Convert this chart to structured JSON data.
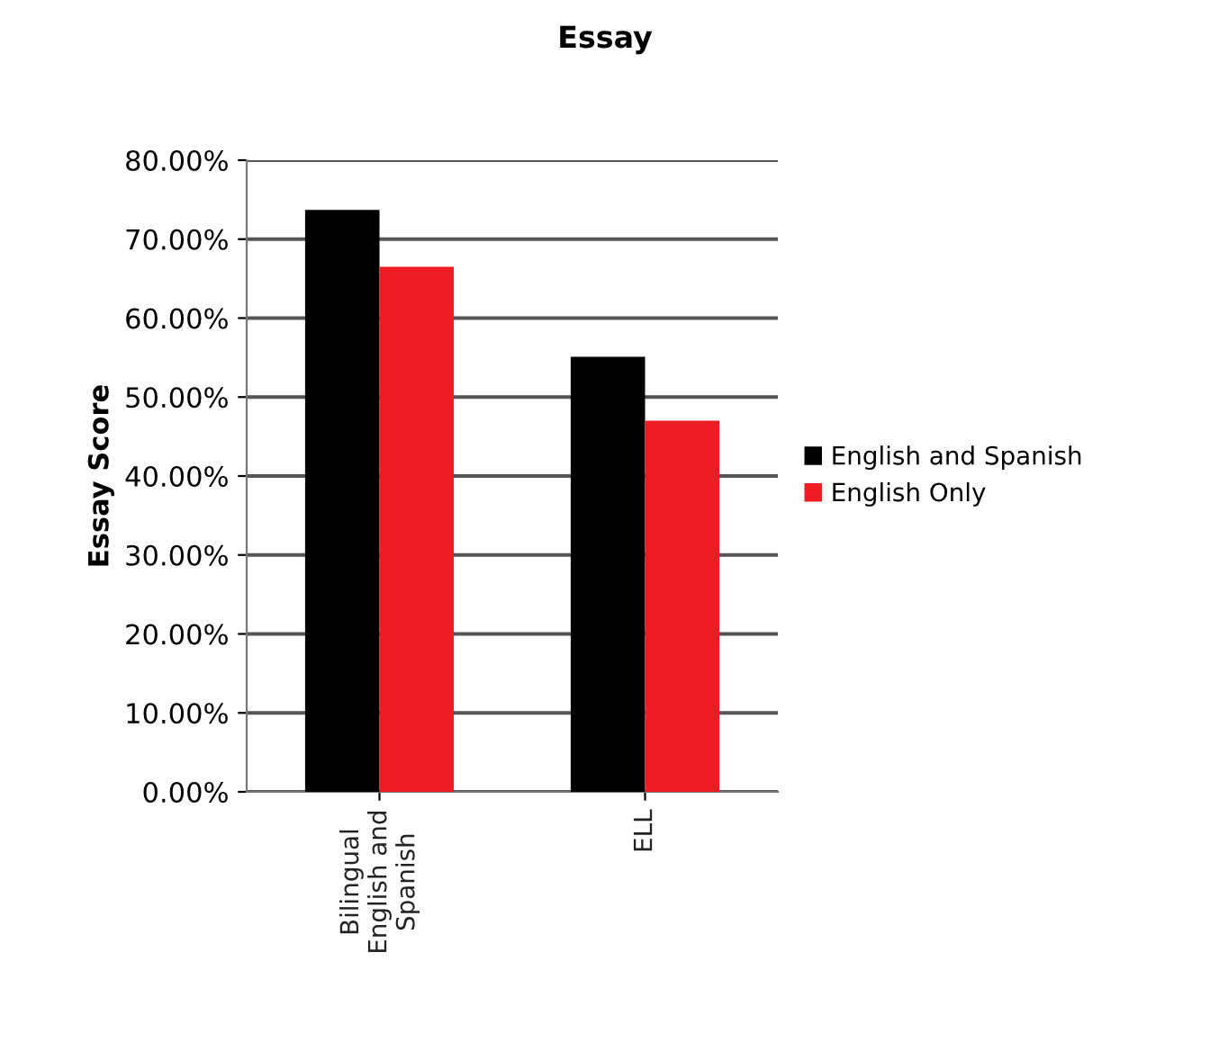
{
  "chart_data": {
    "type": "bar",
    "title": "Essay",
    "ylabel": "Essay Score",
    "categories": [
      "Bilingual\nEnglish and\nSpanish",
      "ELL"
    ],
    "series": [
      {
        "name": "English and Spanish",
        "color": "#000000",
        "values": [
          0.737,
          0.551
        ]
      },
      {
        "name": "English Only",
        "color": "#ee1c24",
        "values": [
          0.665,
          0.47
        ]
      }
    ],
    "ylim": [
      0,
      0.8
    ],
    "yticks": [
      {
        "value": 0,
        "label": "0.00%"
      },
      {
        "value": 0.1,
        "label": "10.00%"
      },
      {
        "value": 0.2,
        "label": "20.00%"
      },
      {
        "value": 0.3,
        "label": "30.00%"
      },
      {
        "value": 0.4,
        "label": "40.00%"
      },
      {
        "value": 0.5,
        "label": "50.00%"
      },
      {
        "value": 0.6,
        "label": "60.00%"
      },
      {
        "value": 0.7,
        "label": "70.00%"
      },
      {
        "value": 0.8,
        "label": "80.00%"
      }
    ],
    "grid": "y",
    "legend": "right"
  }
}
